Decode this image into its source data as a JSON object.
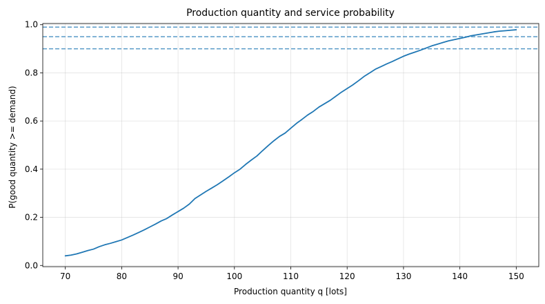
{
  "chart_data": {
    "type": "line",
    "title": "Production quantity and service probability",
    "xlabel": "Production quantity q [lots]",
    "ylabel": "P(good quantity >= demand)",
    "xlim": [
      66,
      154
    ],
    "ylim": [
      -0.005,
      1.005
    ],
    "xticks": [
      70,
      80,
      90,
      100,
      110,
      120,
      130,
      140,
      150
    ],
    "yticks": [
      0.0,
      0.2,
      0.4,
      0.6,
      0.8,
      1.0
    ],
    "ytick_labels": [
      "0.0",
      "0.2",
      "0.4",
      "0.6",
      "0.8",
      "1.0"
    ],
    "grid": true,
    "series": [
      {
        "color": "#1f77b4",
        "x": [
          70,
          71,
          72,
          73,
          74,
          75,
          76,
          77,
          78,
          79,
          80,
          81,
          82,
          83,
          84,
          85,
          86,
          87,
          88,
          89,
          90,
          91,
          92,
          93,
          94,
          95,
          96,
          97,
          98,
          99,
          100,
          101,
          102,
          103,
          104,
          105,
          106,
          107,
          108,
          109,
          110,
          111,
          112,
          113,
          114,
          115,
          116,
          117,
          118,
          119,
          120,
          121,
          122,
          123,
          124,
          125,
          126,
          127,
          128,
          129,
          130,
          131,
          132,
          133,
          134,
          135,
          136,
          137,
          138,
          139,
          140,
          141,
          142,
          143,
          144,
          145,
          146,
          147,
          148,
          149,
          150
        ],
        "y": [
          0.04,
          0.043,
          0.048,
          0.055,
          0.062,
          0.068,
          0.078,
          0.086,
          0.092,
          0.099,
          0.106,
          0.116,
          0.126,
          0.137,
          0.148,
          0.16,
          0.172,
          0.185,
          0.195,
          0.21,
          0.224,
          0.238,
          0.255,
          0.278,
          0.293,
          0.308,
          0.322,
          0.336,
          0.352,
          0.368,
          0.385,
          0.4,
          0.42,
          0.438,
          0.455,
          0.477,
          0.498,
          0.518,
          0.536,
          0.55,
          0.57,
          0.59,
          0.607,
          0.625,
          0.64,
          0.658,
          0.672,
          0.686,
          0.703,
          0.72,
          0.735,
          0.75,
          0.767,
          0.785,
          0.8,
          0.815,
          0.826,
          0.837,
          0.847,
          0.858,
          0.869,
          0.878,
          0.886,
          0.894,
          0.903,
          0.912,
          0.919,
          0.926,
          0.933,
          0.938,
          0.943,
          0.948,
          0.954,
          0.958,
          0.962,
          0.966,
          0.97,
          0.973,
          0.975,
          0.977,
          0.979
        ]
      }
    ],
    "reference_lines": [
      {
        "axis": "y",
        "value": 0.9,
        "style": "dashed",
        "color": "#1f77b4"
      },
      {
        "axis": "y",
        "value": 0.95,
        "style": "dashed",
        "color": "#1f77b4"
      },
      {
        "axis": "y",
        "value": 0.99,
        "style": "dashed",
        "color": "#1f77b4"
      }
    ]
  }
}
